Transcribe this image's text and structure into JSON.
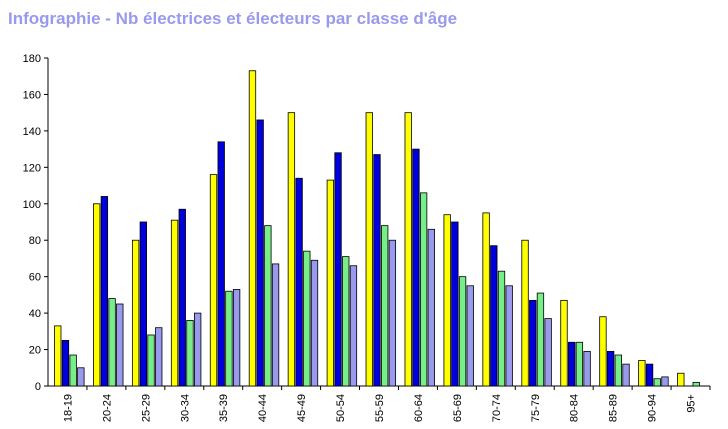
{
  "title": "Infographie - Nb électrices et électeurs par classe d'âge",
  "chart_data": {
    "type": "bar",
    "title": "Infographie - Nb électrices et électeurs par classe d'âge",
    "xlabel": "",
    "ylabel": "",
    "ylim": [
      0,
      180
    ],
    "yticks": [
      0,
      20,
      40,
      60,
      80,
      100,
      120,
      140,
      160,
      180
    ],
    "grid": false,
    "categories": [
      "18-19",
      "20-24",
      "25-29",
      "30-34",
      "35-39",
      "40-44",
      "45-49",
      "50-54",
      "55-59",
      "60-64",
      "65-69",
      "70-74",
      "75-79",
      "80-84",
      "85-89",
      "90-94",
      "95+"
    ],
    "series": [
      {
        "color": "#ffff00",
        "values": [
          33,
          100,
          80,
          91,
          116,
          173,
          150,
          113,
          150,
          150,
          94,
          95,
          80,
          47,
          38,
          14,
          7
        ]
      },
      {
        "color": "#0000dd",
        "values": [
          25,
          104,
          90,
          97,
          134,
          146,
          114,
          128,
          127,
          130,
          90,
          77,
          47,
          24,
          19,
          12,
          0
        ]
      },
      {
        "color": "#77ee88",
        "values": [
          17,
          48,
          28,
          36,
          52,
          88,
          74,
          71,
          88,
          106,
          60,
          63,
          51,
          24,
          17,
          4,
          2
        ]
      },
      {
        "color": "#9999ee",
        "values": [
          10,
          45,
          32,
          40,
          53,
          67,
          69,
          66,
          80,
          86,
          55,
          55,
          37,
          19,
          12,
          5,
          0
        ]
      }
    ]
  }
}
